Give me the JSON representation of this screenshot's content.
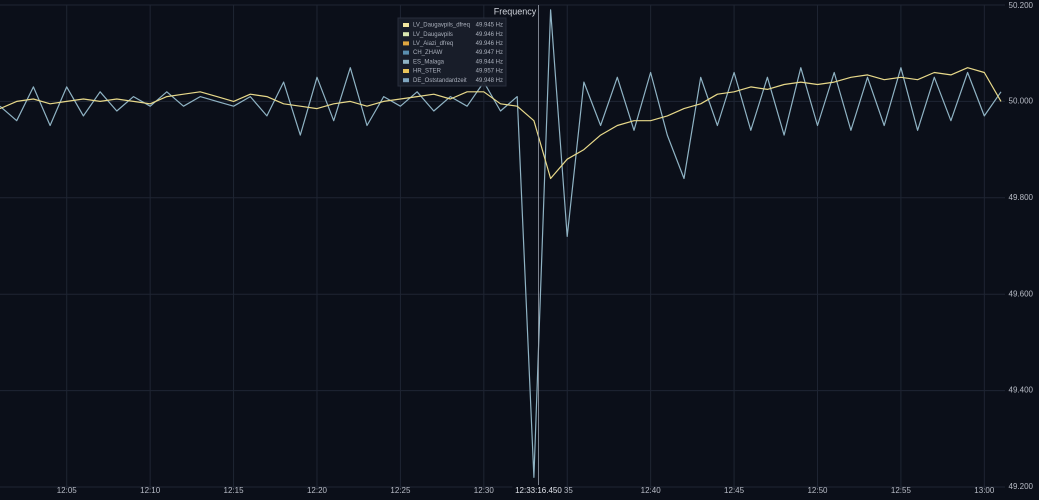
{
  "chart_data": {
    "type": "line",
    "title": "Frequency",
    "crosshair": "12:33:16.450",
    "x": [
      "12:01",
      "12:02",
      "12:03",
      "12:04",
      "12:05",
      "12:06",
      "12:07",
      "12:08",
      "12:09",
      "12:10",
      "12:11",
      "12:12",
      "12:13",
      "12:14",
      "12:15",
      "12:16",
      "12:17",
      "12:18",
      "12:19",
      "12:20",
      "12:21",
      "12:22",
      "12:23",
      "12:24",
      "12:25",
      "12:26",
      "12:27",
      "12:28",
      "12:29",
      "12:30",
      "12:31",
      "12:32",
      "12:33",
      "12:34",
      "12:35",
      "12:36",
      "12:37",
      "12:38",
      "12:39",
      "12:40",
      "12:41",
      "12:42",
      "12:43",
      "12:44",
      "12:45",
      "12:46",
      "12:47",
      "12:48",
      "12:49",
      "12:50",
      "12:51",
      "12:52",
      "12:53",
      "12:54",
      "12:55",
      "12:56",
      "12:57",
      "12:58",
      "12:59",
      "13:00",
      "13:01"
    ],
    "xlim": [
      "12:01",
      "13:01"
    ],
    "xticks": [
      "12:05",
      "12:10",
      "12:15",
      "12:20",
      "12:25",
      "12:30",
      {
        "value": "12:35",
        "label": ":35"
      },
      "12:40",
      "12:45",
      "12:50",
      "12:55",
      "13:00"
    ],
    "ylim": [
      49.2,
      50.2
    ],
    "yticks": [
      {
        "value": 49.2,
        "label": "49.200"
      },
      {
        "value": 49.4,
        "label": "49.400"
      },
      {
        "value": 49.6,
        "label": "49.600"
      },
      {
        "value": 49.8,
        "label": "49.800"
      },
      {
        "value": 50.0,
        "label": "50.000"
      },
      {
        "value": 50.2,
        "label": "50.200"
      }
    ],
    "grid": true,
    "series": [
      {
        "color": "#8fb3c4",
        "values": [
          49.99,
          49.96,
          50.03,
          49.95,
          50.03,
          49.97,
          50.02,
          49.98,
          50.01,
          49.99,
          50.02,
          49.99,
          50.01,
          50.0,
          49.99,
          50.01,
          49.97,
          50.04,
          49.93,
          50.05,
          49.96,
          50.07,
          49.95,
          50.01,
          49.99,
          50.02,
          49.98,
          50.01,
          49.99,
          50.04,
          49.98,
          50.01,
          49.22,
          50.19,
          49.72,
          50.04,
          49.95,
          50.05,
          49.94,
          50.06,
          49.93,
          49.84,
          50.05,
          49.95,
          50.06,
          49.94,
          50.05,
          49.93,
          50.07,
          49.95,
          50.06,
          49.94,
          50.05,
          49.95,
          50.07,
          49.94,
          50.05,
          49.96,
          50.06,
          49.97,
          50.02
        ]
      },
      {
        "color": "#e8d98a",
        "values": [
          49.985,
          50.0,
          50.005,
          49.995,
          50.0,
          50.005,
          50.0,
          50.005,
          50.0,
          49.995,
          50.01,
          50.015,
          50.02,
          50.01,
          50.0,
          50.015,
          50.01,
          49.995,
          49.99,
          49.985,
          49.995,
          50.0,
          49.99,
          50.0,
          50.005,
          50.01,
          50.015,
          50.005,
          50.02,
          50.02,
          49.995,
          49.99,
          49.96,
          49.84,
          49.88,
          49.9,
          49.93,
          49.95,
          49.96,
          49.96,
          49.97,
          49.985,
          49.995,
          50.015,
          50.02,
          50.03,
          50.025,
          50.035,
          50.04,
          50.035,
          50.04,
          50.05,
          50.055,
          50.045,
          50.05,
          50.045,
          50.06,
          50.055,
          50.07,
          50.06,
          50.0
        ]
      }
    ],
    "legend": [
      {
        "name": "LV_Daugavpils_dfreq",
        "color": "#f2e6a0",
        "value": "49.945 Hz"
      },
      {
        "name": "LV_Daugavpils",
        "color": "#d9e6b0",
        "value": "49.946 Hz"
      },
      {
        "name": "LV_Aiazi_dfreq",
        "color": "#e0a640",
        "value": "49.946 Hz"
      },
      {
        "name": "CH_ZHAW",
        "color": "#5a8fb0",
        "value": "49.947 Hz"
      },
      {
        "name": "ES_Malaga",
        "color": "#8fb3c4",
        "value": "49.944 Hz"
      },
      {
        "name": "HR_STER",
        "color": "#e8c35a",
        "value": "49.957 Hz"
      },
      {
        "name": "DE_Oststandardzeit",
        "color": "#7fa6c0",
        "value": "49.948 Hz"
      }
    ]
  }
}
